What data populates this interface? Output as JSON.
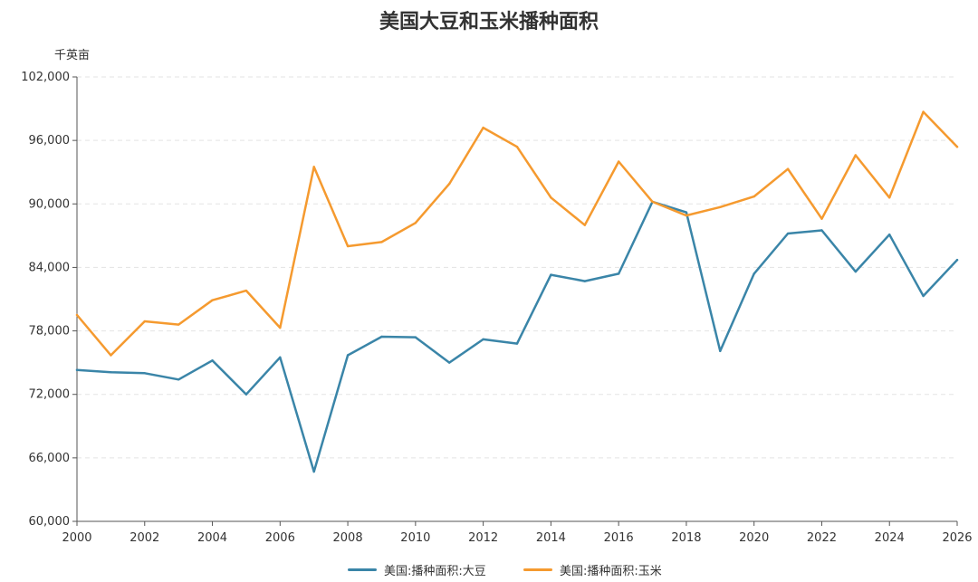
{
  "chart_data": {
    "type": "line",
    "title": "美国大豆和玉米播种面积",
    "ylabel": "千英亩",
    "xlabel": "",
    "x": [
      2000,
      2001,
      2002,
      2003,
      2004,
      2005,
      2006,
      2007,
      2008,
      2009,
      2010,
      2011,
      2012,
      2013,
      2014,
      2015,
      2016,
      2017,
      2018,
      2019,
      2020,
      2021,
      2022,
      2023,
      2024,
      2025,
      2026
    ],
    "xticks": [
      "2000",
      "2002",
      "2004",
      "2006",
      "2008",
      "2010",
      "2012",
      "2014",
      "2016",
      "2018",
      "2020",
      "2022",
      "2024",
      "2026"
    ],
    "ylim": [
      60000,
      102000
    ],
    "yticks": [
      "60,000",
      "66,000",
      "72,000",
      "78,000",
      "84,000",
      "90,000",
      "96,000",
      "102,000"
    ],
    "grid": true,
    "legend_position": "bottom",
    "series": [
      {
        "name": "美国:播种面积:大豆",
        "color": "#3a85a8",
        "values": [
          74300,
          74100,
          74000,
          73400,
          75200,
          72000,
          75500,
          64700,
          75700,
          77450,
          77400,
          75000,
          77200,
          76800,
          83300,
          82700,
          83400,
          90200,
          89200,
          76100,
          83400,
          87200,
          87500,
          83600,
          87100,
          81300,
          84700
        ]
      },
      {
        "name": "美国:播种面积:玉米",
        "color": "#f59a2f",
        "values": [
          79500,
          75700,
          78900,
          78600,
          80900,
          81800,
          78300,
          93500,
          86000,
          86400,
          88200,
          91900,
          97200,
          95400,
          90600,
          88000,
          94000,
          90200,
          88900,
          89700,
          90700,
          93300,
          88600,
          94600,
          90600,
          98700,
          95400
        ]
      }
    ]
  }
}
